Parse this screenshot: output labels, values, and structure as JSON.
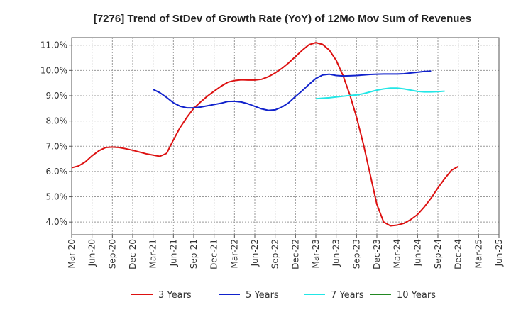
{
  "chart_data": {
    "type": "line",
    "title": "[7276]  Trend of StDev of Growth Rate (YoY) of 12Mo Mov Sum of Revenues",
    "xlabel": "",
    "ylabel": "",
    "ylim": [
      3.5,
      11.3
    ],
    "y_ticks": [
      4.0,
      5.0,
      6.0,
      7.0,
      8.0,
      9.0,
      10.0,
      11.0
    ],
    "y_tick_labels": [
      "4.0%",
      "5.0%",
      "6.0%",
      "7.0%",
      "8.0%",
      "9.0%",
      "10.0%",
      "11.0%"
    ],
    "x_tick_labels": [
      "Mar-20",
      "Jun-20",
      "Sep-20",
      "Dec-20",
      "Mar-21",
      "Jun-21",
      "Sep-21",
      "Dec-21",
      "Mar-22",
      "Jun-22",
      "Sep-22",
      "Dec-22",
      "Mar-23",
      "Jun-23",
      "Sep-23",
      "Dec-23",
      "Mar-24",
      "Jun-24",
      "Sep-24",
      "Dec-24",
      "Mar-25",
      "Jun-25"
    ],
    "grid": true,
    "legend_position": "bottom",
    "series": [
      {
        "name": "3 Years",
        "color": "#dd1111",
        "start_index": 0,
        "values": [
          6.15,
          6.22,
          6.38,
          6.62,
          6.82,
          6.95,
          6.97,
          6.95,
          6.9,
          6.84,
          6.77,
          6.7,
          6.65,
          6.6,
          6.72,
          7.25,
          7.75,
          8.15,
          8.5,
          8.75,
          8.98,
          9.18,
          9.37,
          9.53,
          9.6,
          9.63,
          9.62,
          9.62,
          9.65,
          9.75,
          9.9,
          10.08,
          10.3,
          10.55,
          10.8,
          11.02,
          11.1,
          11.03,
          10.8,
          10.4,
          9.8,
          9.05,
          8.15,
          7.1,
          5.9,
          4.7,
          4.0,
          3.85,
          3.88,
          3.95,
          4.1,
          4.3,
          4.6,
          4.95,
          5.35,
          5.72,
          6.05,
          6.2
        ]
      },
      {
        "name": "5 Years",
        "color": "#1122cc",
        "start_index": 12,
        "values": [
          9.25,
          9.12,
          8.93,
          8.72,
          8.58,
          8.52,
          8.52,
          8.55,
          8.6,
          8.65,
          8.7,
          8.77,
          8.78,
          8.75,
          8.68,
          8.58,
          8.48,
          8.42,
          8.44,
          8.55,
          8.72,
          8.97,
          9.2,
          9.45,
          9.68,
          9.82,
          9.85,
          9.8,
          9.78,
          9.79,
          9.8,
          9.82,
          9.84,
          9.85,
          9.86,
          9.86,
          9.86,
          9.87,
          9.9,
          9.93,
          9.96,
          9.97
        ]
      },
      {
        "name": "7 Years",
        "color": "#22e6e6",
        "start_index": 36,
        "values": [
          8.88,
          8.9,
          8.92,
          8.95,
          8.98,
          9.01,
          9.03,
          9.08,
          9.15,
          9.22,
          9.27,
          9.3,
          9.3,
          9.27,
          9.22,
          9.17,
          9.15,
          9.15,
          9.16,
          9.18
        ]
      },
      {
        "name": "10 Years",
        "color": "#228822",
        "start_index": 0,
        "values": []
      }
    ]
  }
}
